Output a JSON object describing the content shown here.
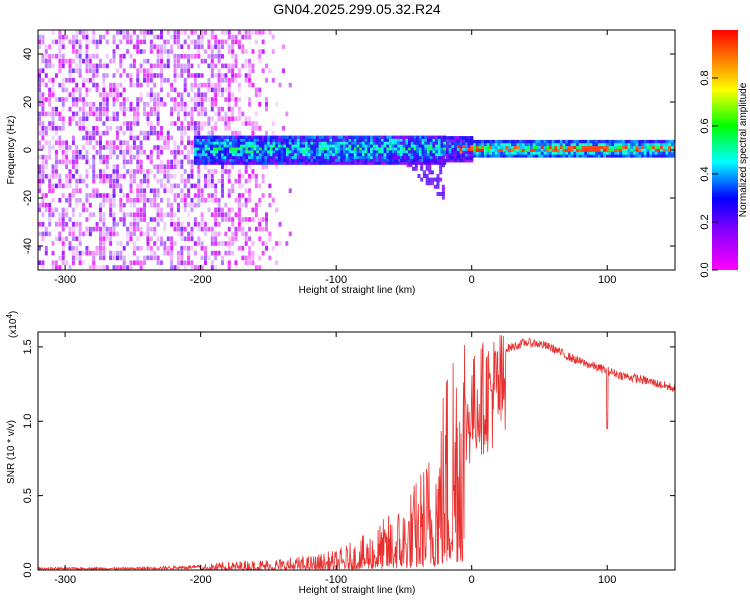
{
  "figure": {
    "title": "GN04.2025.299.05.32.R24"
  },
  "chart_data": [
    {
      "type": "heatmap",
      "title": "GN04.2025.299.05.32.R24",
      "xlabel": "Height of straight line (km)",
      "ylabel": "Frequency (Hz)",
      "xlim": [
        -320,
        150
      ],
      "ylim": [
        -50,
        50
      ],
      "x_ticks": [
        -300,
        -200,
        -100,
        0,
        100
      ],
      "y_ticks": [
        -40,
        -20,
        0,
        20,
        40
      ],
      "grid": false,
      "colorbar": {
        "label": "Normalized spectral amplitude",
        "range": [
          0,
          1
        ],
        "ticks": [
          0.0,
          0.2,
          0.4,
          0.6,
          0.8
        ],
        "colormap": [
          "#ff00ff",
          "#8000ff",
          "#0000ff",
          "#00ffff",
          "#00ff00",
          "#ffff00",
          "#ff0000"
        ]
      },
      "features": {
        "noise_region_x": [
          -320,
          -170
        ],
        "band_center_hz": 0,
        "band_start_x": -200,
        "strong_signal_start_x": -10
      }
    },
    {
      "type": "line",
      "xlabel": "Height of straight line (km)",
      "ylabel": "SNR (10 * v/v)",
      "multiplier_label": "(x10",
      "multiplier_exp": "4",
      "xlim": [
        -320,
        150
      ],
      "ylim": [
        0,
        1.6
      ],
      "x_ticks": [
        -300,
        -200,
        -100,
        0,
        100
      ],
      "y_ticks": [
        0.0,
        0.5,
        1.0,
        1.5
      ],
      "grid": false,
      "color": "#e8302e",
      "envelope": {
        "x": [
          -320,
          -250,
          -200,
          -180,
          -150,
          -120,
          -100,
          -80,
          -60,
          -50,
          -40,
          -30,
          -20,
          -15,
          -10,
          -5,
          0,
          5,
          10,
          20,
          30,
          40,
          50,
          60,
          70,
          80,
          90,
          100,
          110,
          120,
          130,
          150
        ],
        "y": [
          0.01,
          0.01,
          0.02,
          0.03,
          0.04,
          0.05,
          0.07,
          0.12,
          0.2,
          0.25,
          0.33,
          0.45,
          0.7,
          0.9,
          1.05,
          1.15,
          1.3,
          1.38,
          1.42,
          1.47,
          1.5,
          1.53,
          1.52,
          1.49,
          1.44,
          1.4,
          1.37,
          1.34,
          1.31,
          1.29,
          1.27,
          1.22
        ]
      },
      "dip": {
        "x": 100,
        "y": 0.95
      }
    }
  ]
}
